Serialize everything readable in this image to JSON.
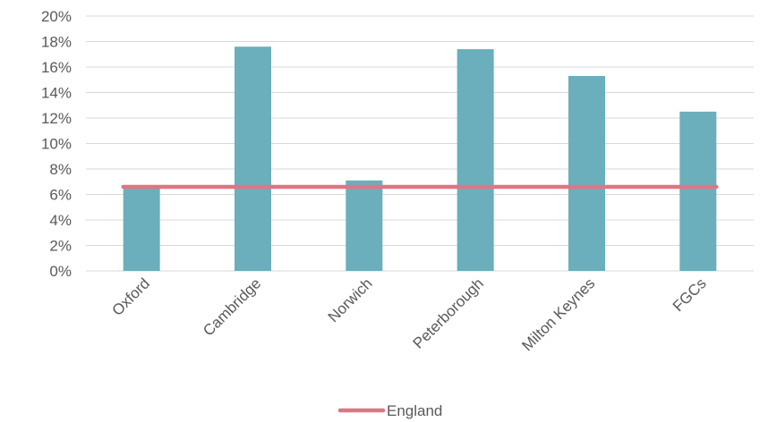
{
  "chart_data": {
    "type": "bar",
    "categories": [
      "Oxford",
      "Cambridge",
      "Norwich",
      "Peterborough",
      "Milton Keynes",
      "FGCs"
    ],
    "series": [
      {
        "values": [
          6.7,
          17.6,
          7.1,
          17.4,
          15.3,
          12.5
        ],
        "color": "#6aafbb"
      }
    ],
    "reference_line": {
      "name": "England",
      "value": 6.6,
      "color": "#e07585"
    },
    "y_unit": "%",
    "ylim": [
      0,
      20
    ],
    "y_ticks": [
      0,
      2,
      4,
      6,
      8,
      10,
      12,
      14,
      16,
      18,
      20
    ],
    "y_tick_labels": [
      "0%",
      "2%",
      "4%",
      "6%",
      "8%",
      "10%",
      "12%",
      "14%",
      "16%",
      "18%",
      "20%"
    ],
    "grid": true,
    "legend_position": "bottom"
  }
}
